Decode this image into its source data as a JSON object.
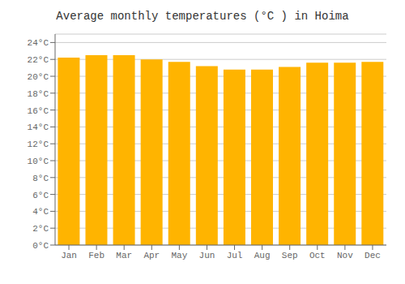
{
  "chart_data": {
    "type": "bar",
    "title": "Average monthly temperatures (°C ) in Hoima",
    "categories": [
      "Jan",
      "Feb",
      "Mar",
      "Apr",
      "May",
      "Jun",
      "Jul",
      "Aug",
      "Sep",
      "Oct",
      "Nov",
      "Dec"
    ],
    "values": [
      22.2,
      22.5,
      22.5,
      22.0,
      21.7,
      21.2,
      20.8,
      20.8,
      21.1,
      21.6,
      21.6,
      21.7
    ],
    "color": "#FFB400",
    "ylim": [
      0,
      25
    ],
    "yticks": [
      {
        "value": 0,
        "label": "0°C"
      },
      {
        "value": 2,
        "label": "2°C"
      },
      {
        "value": 4,
        "label": "4°C"
      },
      {
        "value": 6,
        "label": "6°C"
      },
      {
        "value": 8,
        "label": "8°C"
      },
      {
        "value": 10,
        "label": "10°C"
      },
      {
        "value": 12,
        "label": "12°C"
      },
      {
        "value": 14,
        "label": "14°C"
      },
      {
        "value": 16,
        "label": "16°C"
      },
      {
        "value": 18,
        "label": "18°C"
      },
      {
        "value": 20,
        "label": "20°C"
      },
      {
        "value": 22,
        "label": "22°C"
      },
      {
        "value": 24,
        "label": "24°C"
      }
    ],
    "grid": true
  }
}
